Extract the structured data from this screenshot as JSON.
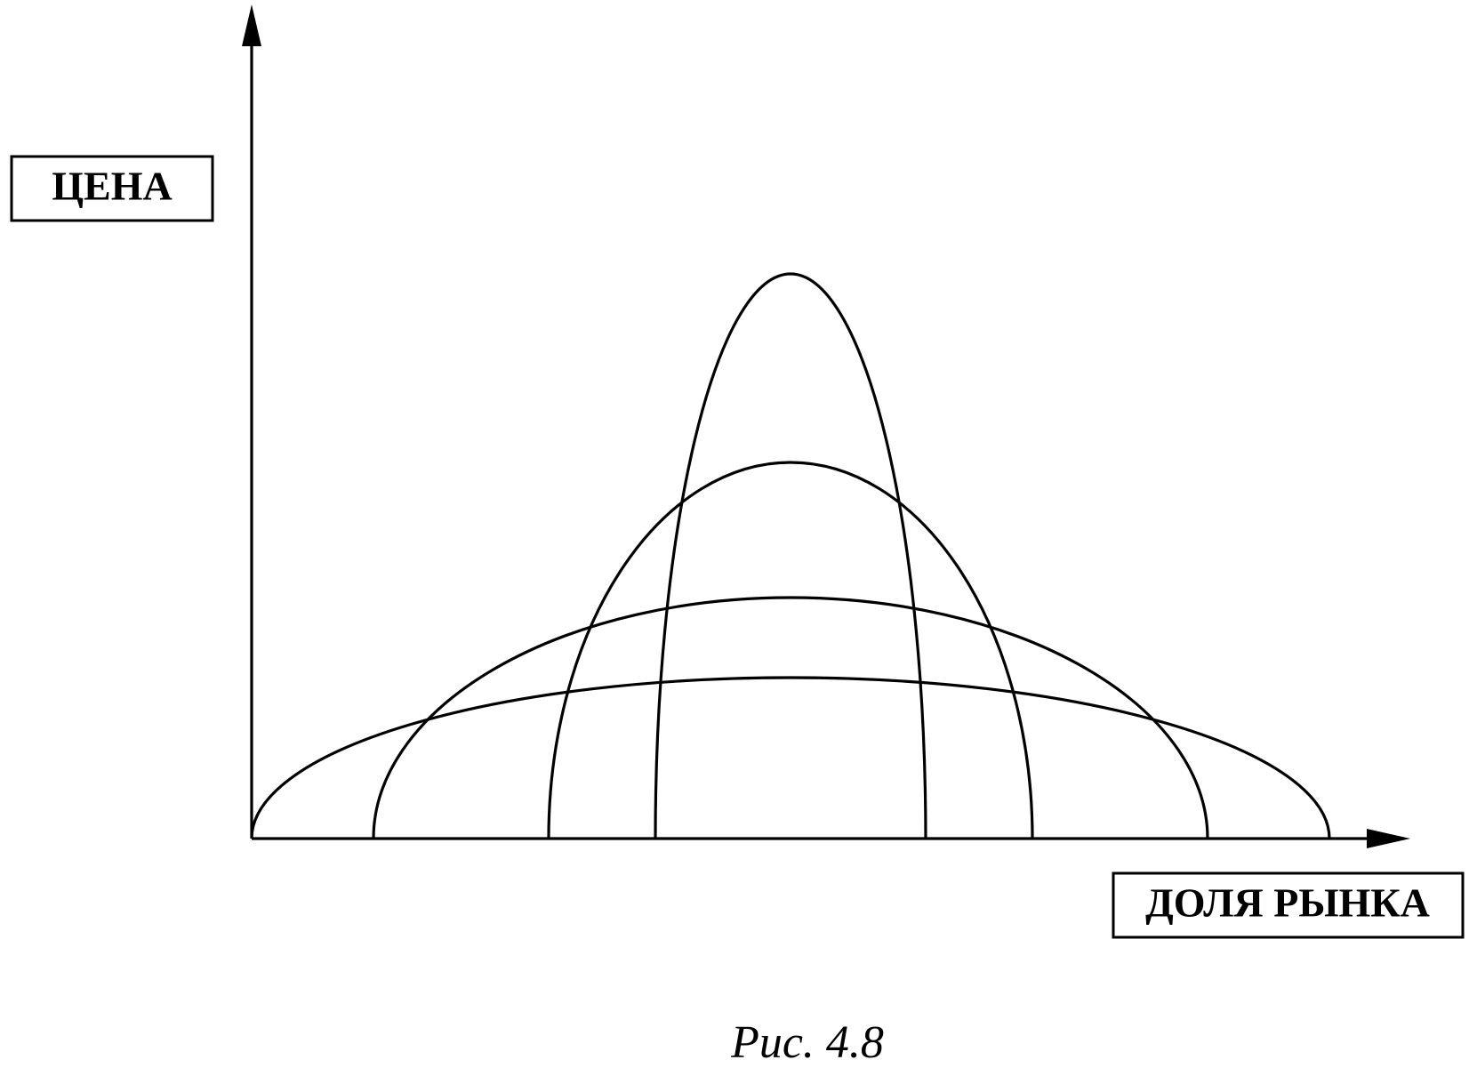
{
  "labels": {
    "y_axis": "ЦЕНА",
    "x_axis": "ДОЛЯ РЫНКА"
  },
  "caption": "Рис. 4.8"
}
